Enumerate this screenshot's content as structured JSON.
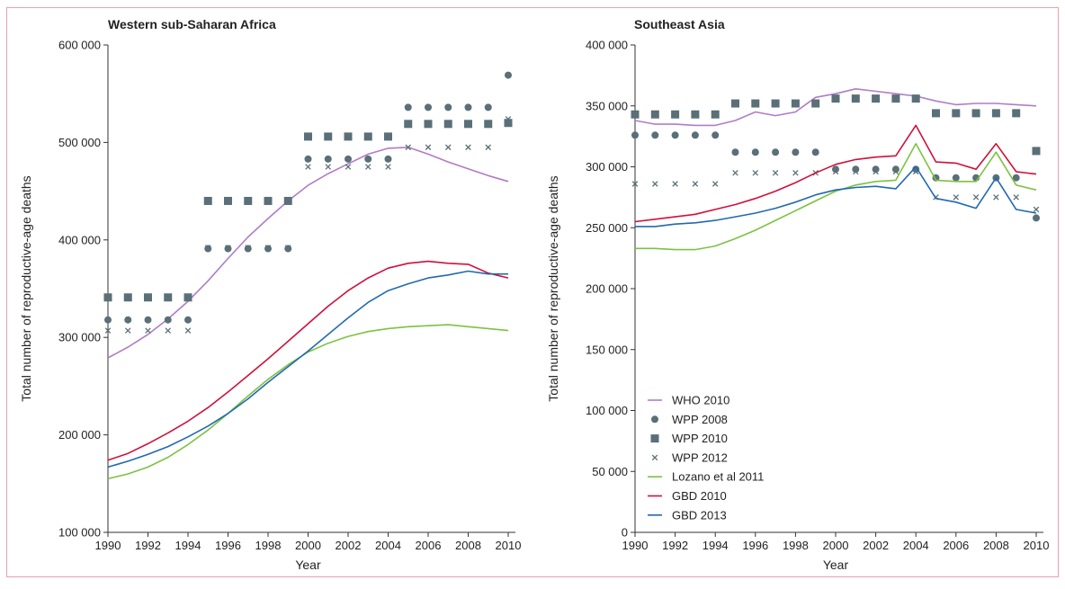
{
  "colors": {
    "frame": "#e8a0b0",
    "who": "#b07cc6",
    "markers": "#5a6f78",
    "lozano": "#7cc242",
    "gbd2010": "#d0103a",
    "gbd2013": "#2169b0"
  },
  "chart_data": [
    {
      "type": "line",
      "title": "Western sub-Saharan Africa",
      "xlabel": "Year",
      "ylabel": "Total number of reproductive-age deaths",
      "xlim": [
        1990,
        2010
      ],
      "ylim": [
        100000,
        600000
      ],
      "xticks": [
        1990,
        1992,
        1994,
        1996,
        1998,
        2000,
        2002,
        2004,
        2006,
        2008,
        2010
      ],
      "xtick_labels": [
        "1990",
        "1992",
        "1994",
        "1996",
        "1998",
        "2000",
        "2002",
        "2004",
        "2006",
        "2008",
        "2010"
      ],
      "yticks": [
        100000,
        200000,
        300000,
        400000,
        500000,
        600000
      ],
      "ytick_labels": [
        "100 000",
        "200 000",
        "300 000",
        "400 000",
        "500 000",
        "600 000"
      ],
      "grid": false,
      "series": [
        {
          "name": "WHO 2010",
          "style": "line",
          "color_key": "who",
          "x": [
            1990,
            1991,
            1992,
            1993,
            1994,
            1995,
            1996,
            1997,
            1998,
            1999,
            2000,
            2001,
            2002,
            2003,
            2004,
            2005,
            2006,
            2007,
            2008,
            2009,
            2010
          ],
          "y": [
            279000,
            290000,
            303000,
            319000,
            337000,
            358000,
            381000,
            403000,
            422000,
            440000,
            456000,
            468000,
            478000,
            488000,
            494000,
            495000,
            488000,
            480000,
            473000,
            466000,
            460000
          ]
        },
        {
          "name": "WPP 2008",
          "style": "circle",
          "color_key": "markers",
          "x": [
            1990,
            1991,
            1992,
            1993,
            1994,
            1995,
            1996,
            1997,
            1998,
            1999,
            2000,
            2001,
            2002,
            2003,
            2004,
            2005,
            2006,
            2007,
            2008,
            2009,
            2010
          ],
          "y": [
            318000,
            318000,
            318000,
            318000,
            318000,
            391000,
            391000,
            391000,
            391000,
            391000,
            483000,
            483000,
            483000,
            483000,
            483000,
            536000,
            536000,
            536000,
            536000,
            536000,
            569000
          ]
        },
        {
          "name": "WPP 2010",
          "style": "square",
          "color_key": "markers",
          "x": [
            1990,
            1991,
            1992,
            1993,
            1994,
            1995,
            1996,
            1997,
            1998,
            1999,
            2000,
            2001,
            2002,
            2003,
            2004,
            2005,
            2006,
            2007,
            2008,
            2009,
            2010
          ],
          "y": [
            341000,
            341000,
            341000,
            341000,
            341000,
            440000,
            440000,
            440000,
            440000,
            440000,
            506000,
            506000,
            506000,
            506000,
            506000,
            519000,
            519000,
            519000,
            519000,
            519000,
            520000
          ]
        },
        {
          "name": "WPP 2012",
          "style": "cross",
          "color_key": "markers",
          "x": [
            1990,
            1991,
            1992,
            1993,
            1994,
            1995,
            1996,
            1997,
            1998,
            1999,
            2000,
            2001,
            2002,
            2003,
            2004,
            2005,
            2006,
            2007,
            2008,
            2009,
            2010
          ],
          "y": [
            307000,
            307000,
            307000,
            307000,
            307000,
            392000,
            392000,
            392000,
            392000,
            392000,
            475000,
            475000,
            475000,
            475000,
            475000,
            495000,
            495000,
            495000,
            495000,
            495000,
            524000
          ]
        },
        {
          "name": "Lozano et al 2011",
          "style": "line",
          "color_key": "lozano",
          "x": [
            1990,
            1991,
            1992,
            1993,
            1994,
            1995,
            1996,
            1997,
            1998,
            1999,
            2000,
            2001,
            2002,
            2003,
            2004,
            2005,
            2006,
            2007,
            2008,
            2009,
            2010
          ],
          "y": [
            155000,
            160000,
            167000,
            177000,
            190000,
            205000,
            222000,
            240000,
            257000,
            272000,
            285000,
            294000,
            301000,
            306000,
            309000,
            311000,
            312000,
            313000,
            311000,
            309000,
            307000
          ]
        },
        {
          "name": "GBD 2010",
          "style": "line",
          "color_key": "gbd2010",
          "x": [
            1990,
            1991,
            1992,
            1993,
            1994,
            1995,
            1996,
            1997,
            1998,
            1999,
            2000,
            2001,
            2002,
            2003,
            2004,
            2005,
            2006,
            2007,
            2008,
            2009,
            2010
          ],
          "y": [
            174000,
            181000,
            191000,
            202000,
            214000,
            228000,
            244000,
            261000,
            278000,
            296000,
            314000,
            332000,
            348000,
            361000,
            371000,
            376000,
            378000,
            376000,
            375000,
            366000,
            361000
          ]
        },
        {
          "name": "GBD 2013",
          "style": "line",
          "color_key": "gbd2013",
          "x": [
            1990,
            1991,
            1992,
            1993,
            1994,
            1995,
            1996,
            1997,
            1998,
            1999,
            2000,
            2001,
            2002,
            2003,
            2004,
            2005,
            2006,
            2007,
            2008,
            2009,
            2010
          ],
          "y": [
            167000,
            173000,
            180000,
            188000,
            198000,
            209000,
            222000,
            237000,
            254000,
            270000,
            286000,
            303000,
            320000,
            336000,
            348000,
            355000,
            361000,
            364000,
            368000,
            365000,
            365000
          ]
        }
      ]
    },
    {
      "type": "line",
      "title": "Southeast Asia",
      "xlabel": "Year",
      "ylabel": "Total number of reproductive-age deaths",
      "xlim": [
        1990,
        2010
      ],
      "ylim": [
        0,
        400000
      ],
      "xticks": [
        1990,
        1992,
        1994,
        1996,
        1998,
        2000,
        2002,
        2004,
        2006,
        2008,
        2010
      ],
      "xtick_labels": [
        "1990",
        "1992",
        "1994",
        "1996",
        "1998",
        "2000",
        "2002",
        "2004",
        "2006",
        "2008",
        "2010"
      ],
      "yticks": [
        0,
        50000,
        100000,
        150000,
        200000,
        250000,
        300000,
        350000,
        400000
      ],
      "ytick_labels": [
        "0",
        "50 000",
        "100 000",
        "150 000",
        "200 000",
        "250 000",
        "300 000",
        "350 000",
        "400 000"
      ],
      "grid": false,
      "legend": "bottom-left",
      "series": [
        {
          "name": "WHO 2010",
          "style": "line",
          "color_key": "who",
          "x": [
            1990,
            1991,
            1992,
            1993,
            1994,
            1995,
            1996,
            1997,
            1998,
            1999,
            2000,
            2001,
            2002,
            2003,
            2004,
            2005,
            2006,
            2007,
            2008,
            2009,
            2010
          ],
          "y": [
            338000,
            335000,
            335000,
            334000,
            334000,
            338000,
            345000,
            342000,
            345000,
            357000,
            360000,
            364000,
            362000,
            360000,
            358000,
            354000,
            351000,
            352000,
            352000,
            351000,
            350000
          ]
        },
        {
          "name": "WPP 2008",
          "style": "circle",
          "color_key": "markers",
          "x": [
            1990,
            1991,
            1992,
            1993,
            1994,
            1995,
            1996,
            1997,
            1998,
            1999,
            2000,
            2001,
            2002,
            2003,
            2004,
            2005,
            2006,
            2007,
            2008,
            2009,
            2010
          ],
          "y": [
            326000,
            326000,
            326000,
            326000,
            326000,
            312000,
            312000,
            312000,
            312000,
            312000,
            298000,
            298000,
            298000,
            298000,
            298000,
            291000,
            291000,
            291000,
            291000,
            291000,
            258000
          ]
        },
        {
          "name": "WPP 2010",
          "style": "square",
          "color_key": "markers",
          "x": [
            1990,
            1991,
            1992,
            1993,
            1994,
            1995,
            1996,
            1997,
            1998,
            1999,
            2000,
            2001,
            2002,
            2003,
            2004,
            2005,
            2006,
            2007,
            2008,
            2009,
            2010
          ],
          "y": [
            343000,
            343000,
            343000,
            343000,
            343000,
            352000,
            352000,
            352000,
            352000,
            352000,
            356000,
            356000,
            356000,
            356000,
            356000,
            344000,
            344000,
            344000,
            344000,
            344000,
            313000
          ]
        },
        {
          "name": "WPP 2012",
          "style": "cross",
          "color_key": "markers",
          "x": [
            1990,
            1991,
            1992,
            1993,
            1994,
            1995,
            1996,
            1997,
            1998,
            1999,
            2000,
            2001,
            2002,
            2003,
            2004,
            2005,
            2006,
            2007,
            2008,
            2009,
            2010
          ],
          "y": [
            286000,
            286000,
            286000,
            286000,
            286000,
            295000,
            295000,
            295000,
            295000,
            295000,
            296000,
            296000,
            296000,
            296000,
            296000,
            275000,
            275000,
            275000,
            275000,
            275000,
            265000
          ]
        },
        {
          "name": "Lozano et al 2011",
          "style": "line",
          "color_key": "lozano",
          "x": [
            1990,
            1991,
            1992,
            1993,
            1994,
            1995,
            1996,
            1997,
            1998,
            1999,
            2000,
            2001,
            2002,
            2003,
            2004,
            2005,
            2006,
            2007,
            2008,
            2009,
            2010
          ],
          "y": [
            233000,
            233000,
            232000,
            232000,
            235000,
            241000,
            248000,
            256000,
            264000,
            272000,
            280000,
            285000,
            288000,
            289000,
            319000,
            289000,
            288000,
            288000,
            312000,
            285000,
            281000
          ]
        },
        {
          "name": "GBD 2010",
          "style": "line",
          "color_key": "gbd2010",
          "x": [
            1990,
            1991,
            1992,
            1993,
            1994,
            1995,
            1996,
            1997,
            1998,
            1999,
            2000,
            2001,
            2002,
            2003,
            2004,
            2005,
            2006,
            2007,
            2008,
            2009,
            2010
          ],
          "y": [
            255000,
            257000,
            259000,
            261000,
            265000,
            269000,
            274000,
            280000,
            287000,
            295000,
            302000,
            306000,
            308000,
            309000,
            334000,
            304000,
            303000,
            298000,
            319000,
            296000,
            294000
          ]
        },
        {
          "name": "GBD 2013",
          "style": "line",
          "color_key": "gbd2013",
          "x": [
            1990,
            1991,
            1992,
            1993,
            1994,
            1995,
            1996,
            1997,
            1998,
            1999,
            2000,
            2001,
            2002,
            2003,
            2004,
            2005,
            2006,
            2007,
            2008,
            2009,
            2010
          ],
          "y": [
            251000,
            251000,
            253000,
            254000,
            256000,
            259000,
            262000,
            266000,
            271000,
            277000,
            281000,
            283000,
            284000,
            282000,
            300000,
            274000,
            271000,
            266000,
            291000,
            265000,
            262000
          ]
        }
      ]
    }
  ]
}
